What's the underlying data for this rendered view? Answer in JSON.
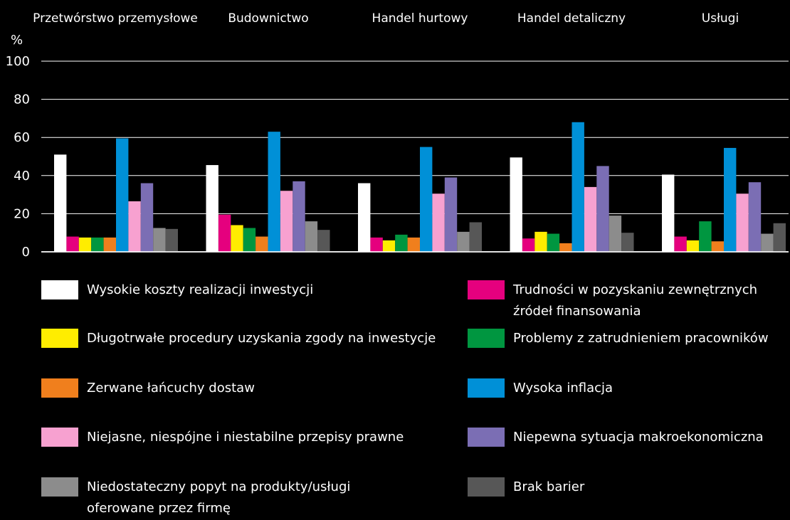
{
  "chart_data": {
    "type": "bar",
    "ylabel": "%",
    "ylim": [
      0,
      100
    ],
    "yticks": [
      0,
      20,
      40,
      60,
      80,
      100
    ],
    "grid": true,
    "legend_position": "bottom",
    "categories": [
      "Przetwórstwo przemysłowe",
      "Budownictwo",
      "Handel hurtowy",
      "Handel detaliczny",
      "Usługi"
    ],
    "series": [
      {
        "name": "Wysokie koszty realizacji inwestycji",
        "color": "#ffffff",
        "values": [
          51,
          45.5,
          36,
          49.5,
          40.5
        ]
      },
      {
        "name": "Trudności w pozyskaniu zewnętrznych\nźródeł finansowania",
        "color": "#e5007e",
        "values": [
          8,
          19.5,
          7.5,
          7,
          8
        ]
      },
      {
        "name": "Długotrwałe procedury uzyskania zgody na inwestycje",
        "color": "#ffed00",
        "values": [
          7.5,
          14,
          6,
          10.5,
          6
        ]
      },
      {
        "name": "Problemy z zatrudnieniem pracowników",
        "color": "#009640",
        "values": [
          7.5,
          12.5,
          9,
          9.5,
          16
        ]
      },
      {
        "name": "Zerwane łańcuchy dostaw",
        "color": "#f07f1d",
        "values": [
          7.5,
          8,
          7.5,
          4.5,
          5.5
        ]
      },
      {
        "name": "Wysoka inflacja",
        "color": "#0090d7",
        "values": [
          59.5,
          63,
          55,
          68,
          54.5
        ]
      },
      {
        "name": "Niejasne, niespójne i niestabilne przepisy prawne",
        "color": "#f7a1d0",
        "values": [
          26.5,
          32,
          30.5,
          34,
          30.5
        ]
      },
      {
        "name": "Niepewna sytuacja makroekonomiczna",
        "color": "#7b6eb4",
        "values": [
          36,
          37,
          39,
          45,
          36.5
        ]
      },
      {
        "name": "Niedostateczny popyt na produkty/usługi\noferowane przez firmę",
        "color": "#8c8c8c",
        "values": [
          12.5,
          16,
          10.5,
          19,
          9.5
        ]
      },
      {
        "name": "Brak barier",
        "color": "#575757",
        "values": [
          12,
          11.5,
          15.5,
          10,
          15
        ]
      }
    ]
  }
}
